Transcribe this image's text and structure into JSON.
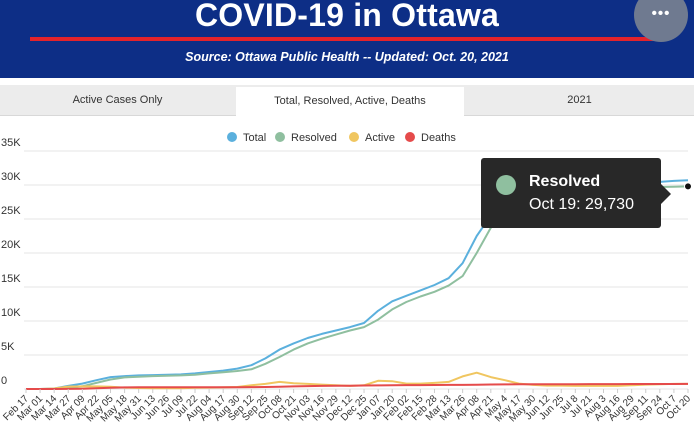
{
  "header": {
    "title": "COVID-19 in Ottawa",
    "subtitle": "Source:  Ottawa Public Health -- Updated:  Oct. 20, 2021",
    "more_button": "•••",
    "colors": {
      "background": "#0d2e86",
      "rule": "#e3232b"
    }
  },
  "tabs": [
    {
      "label": "Active Cases Only",
      "selected": false
    },
    {
      "label": "Total, Resolved, Active, Deaths",
      "selected": true
    },
    {
      "label": "2021",
      "selected": false
    }
  ],
  "tooltip": {
    "series": "Resolved",
    "point": "Oct 19: 29,730",
    "color": "#8fbf9f"
  },
  "chart_data": {
    "type": "line",
    "title": "",
    "xlabel": "",
    "ylabel": "",
    "ylim": [
      0,
      35000
    ],
    "yticks": [
      {
        "value": 0,
        "label": "0"
      },
      {
        "value": 5000,
        "label": "5K"
      },
      {
        "value": 10000,
        "label": "10K"
      },
      {
        "value": 15000,
        "label": "15K"
      },
      {
        "value": 20000,
        "label": "20K"
      },
      {
        "value": 25000,
        "label": "25K"
      },
      {
        "value": 30000,
        "label": "30K"
      },
      {
        "value": 35000,
        "label": "35K"
      }
    ],
    "xticks": [
      "Feb 17",
      "Mar 01",
      "Mar 14",
      "Mar 27",
      "Apr 09",
      "Apr 22",
      "May 05",
      "May 18",
      "May 31",
      "Jun 13",
      "Jun 26",
      "Jul 09",
      "Jul 22",
      "Aug 04",
      "Aug 17",
      "Aug 30",
      "Sep 12",
      "Sep 25",
      "Oct 08",
      "Oct 21",
      "Nov 03",
      "Nov 16",
      "Nov 29",
      "Dec 12",
      "Dec 25",
      "Jan 07",
      "Jan 20",
      "Feb 02",
      "Feb 15",
      "Feb 28",
      "Mar 13",
      "Mar 26",
      "Apr 08",
      "Apr 21",
      "May 4",
      "May 17",
      "May 30",
      "Jun 12",
      "Jun 25",
      "Jul 8",
      "Jul 21",
      "Aug 3",
      "Aug 16",
      "Aug 29",
      "Sep 11",
      "Sep 24",
      "Oct 7",
      "Oct 20"
    ],
    "legend": {
      "placement": "top-center"
    },
    "grid": true,
    "series": [
      {
        "name": "Total",
        "color": "#5bb0dd",
        "values": [
          0,
          0,
          80,
          450,
          800,
          1300,
          1750,
          1900,
          2000,
          2050,
          2100,
          2150,
          2300,
          2500,
          2700,
          3000,
          3500,
          4500,
          5800,
          6700,
          7500,
          8100,
          8600,
          9100,
          9700,
          11500,
          12900,
          13700,
          14500,
          15300,
          16300,
          18500,
          22500,
          25500,
          27100,
          27800,
          28300,
          28700,
          29100,
          29300,
          29500,
          29700,
          29900,
          30100,
          30300,
          30450,
          30600,
          30700
        ]
      },
      {
        "name": "Resolved",
        "color": "#8fbf9f",
        "values": [
          0,
          0,
          0,
          100,
          400,
          900,
          1400,
          1700,
          1800,
          1900,
          1950,
          2000,
          2100,
          2300,
          2450,
          2650,
          2900,
          3700,
          4700,
          5800,
          6700,
          7400,
          8000,
          8600,
          9100,
          10200,
          11700,
          12800,
          13600,
          14300,
          15200,
          16600,
          20000,
          23700,
          25700,
          26900,
          27600,
          28100,
          28500,
          28800,
          29000,
          29200,
          29400,
          29500,
          29600,
          29700,
          29730,
          29800
        ]
      },
      {
        "name": "Active",
        "color": "#f0c660",
        "values": [
          0,
          0,
          80,
          350,
          380,
          380,
          330,
          200,
          150,
          120,
          100,
          100,
          180,
          200,
          230,
          300,
          550,
          750,
          1050,
          850,
          750,
          650,
          550,
          450,
          550,
          1200,
          1150,
          800,
          800,
          900,
          1050,
          1850,
          2400,
          1750,
          1300,
          800,
          600,
          500,
          500,
          450,
          450,
          450,
          450,
          550,
          650,
          700,
          750,
          750
        ]
      },
      {
        "name": "Deaths",
        "color": "#e54b4b",
        "values": [
          0,
          0,
          0,
          10,
          40,
          100,
          180,
          230,
          250,
          260,
          262,
          264,
          266,
          268,
          270,
          272,
          275,
          290,
          330,
          380,
          420,
          450,
          470,
          490,
          510,
          530,
          550,
          570,
          580,
          590,
          600,
          610,
          630,
          660,
          680,
          690,
          695,
          700,
          705,
          710,
          715,
          720,
          725,
          730,
          735,
          740,
          742,
          745
        ]
      }
    ]
  }
}
